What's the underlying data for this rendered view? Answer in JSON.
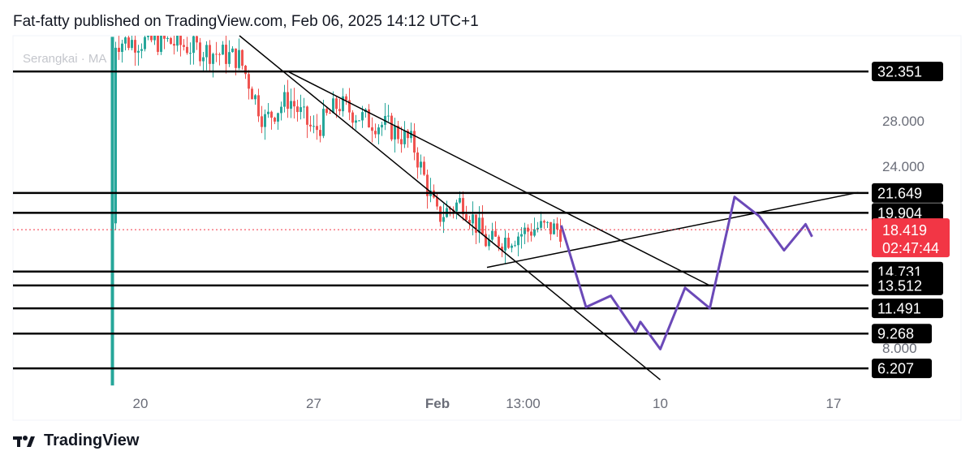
{
  "header": {
    "published_text": "Fat-fatty published on TradingView.com, Feb 06, 2025 14:12 UTC+1"
  },
  "legend": {
    "text": "Serangkai · MA"
  },
  "footer": {
    "brand": "TradingView",
    "logo_icon": "tradingview-logo-icon"
  },
  "colors": {
    "up": "#26a69a",
    "down": "#ef5350",
    "projection": "#6b49b8",
    "last_price": "#f23645",
    "level_line": "#000000",
    "tag_bg": "#000000"
  },
  "chart_data": {
    "type": "candlestick",
    "title": "",
    "ylim": [
      4.5,
      35.5
    ],
    "y_ticks": [
      "28.000",
      "24.000",
      "8.000"
    ],
    "x_ticks": [
      "20",
      "27",
      "Feb",
      "13:00",
      "10",
      "17"
    ],
    "horizontal_levels": [
      {
        "value": 32.351,
        "label": "32.351"
      },
      {
        "value": 21.649,
        "label": "21.649"
      },
      {
        "value": 19.904,
        "label": "19.904"
      },
      {
        "value": 14.731,
        "label": "14.731"
      },
      {
        "value": 13.512,
        "label": "13.512"
      },
      {
        "value": 11.491,
        "label": "11.491"
      },
      {
        "value": 9.268,
        "label": "9.268"
      },
      {
        "value": 6.207,
        "label": "6.207"
      }
    ],
    "last_price": {
      "value": 18.419,
      "label": "18.419",
      "countdown": "02:47:44"
    },
    "price_path": [
      {
        "x": "Jan 19",
        "y": 19.0
      },
      {
        "x": "Jan 19",
        "y": 35.0
      },
      {
        "x": "Jan 21",
        "y": 35.0
      },
      {
        "x": "Jan 24",
        "y": 33.5
      },
      {
        "x": "Jan 25",
        "y": 28.0
      },
      {
        "x": "Jan 26",
        "y": 30.0
      },
      {
        "x": "Jan 27",
        "y": 27.0
      },
      {
        "x": "Jan 28",
        "y": 29.5
      },
      {
        "x": "Jan 29",
        "y": 28.2
      },
      {
        "x": "Jan 30",
        "y": 27.5
      },
      {
        "x": "Jan 31",
        "y": 26.0
      },
      {
        "x": "Feb 01",
        "y": 19.5
      },
      {
        "x": "Feb 02",
        "y": 21.0
      },
      {
        "x": "Feb 03",
        "y": 17.2
      },
      {
        "x": "Feb 04",
        "y": 17.8
      },
      {
        "x": "Feb 05",
        "y": 18.6
      },
      {
        "x": "Feb 06",
        "y": 18.419
      }
    ],
    "projection_path": [
      {
        "x": "Feb 06",
        "y": 18.8
      },
      {
        "x": "Feb 07",
        "y": 11.6
      },
      {
        "x": "Feb 08",
        "y": 12.6
      },
      {
        "x": "Feb 09",
        "y": 9.4
      },
      {
        "x": "Feb 09",
        "y": 10.3
      },
      {
        "x": "Feb 10",
        "y": 7.9
      },
      {
        "x": "Feb 11",
        "y": 13.3
      },
      {
        "x": "Feb 12",
        "y": 11.5
      },
      {
        "x": "Feb 13",
        "y": 21.3
      },
      {
        "x": "Feb 14",
        "y": 19.6
      },
      {
        "x": "Feb 15",
        "y": 16.6
      },
      {
        "x": "Feb 16",
        "y": 18.9
      },
      {
        "x": "Feb 16",
        "y": 17.8
      }
    ],
    "trendlines": [
      {
        "from": {
          "x": "Jan 26",
          "y": 32.3
        },
        "to": {
          "x": "Feb 12",
          "y": 13.5
        }
      },
      {
        "from": {
          "x": "Jan 24",
          "y": 35.5
        },
        "to": {
          "x": "Feb 10",
          "y": 5.2
        }
      },
      {
        "from": {
          "x": "Feb 03",
          "y": 15.1
        },
        "to": {
          "x": "Feb 18",
          "y": 21.7
        }
      }
    ]
  }
}
